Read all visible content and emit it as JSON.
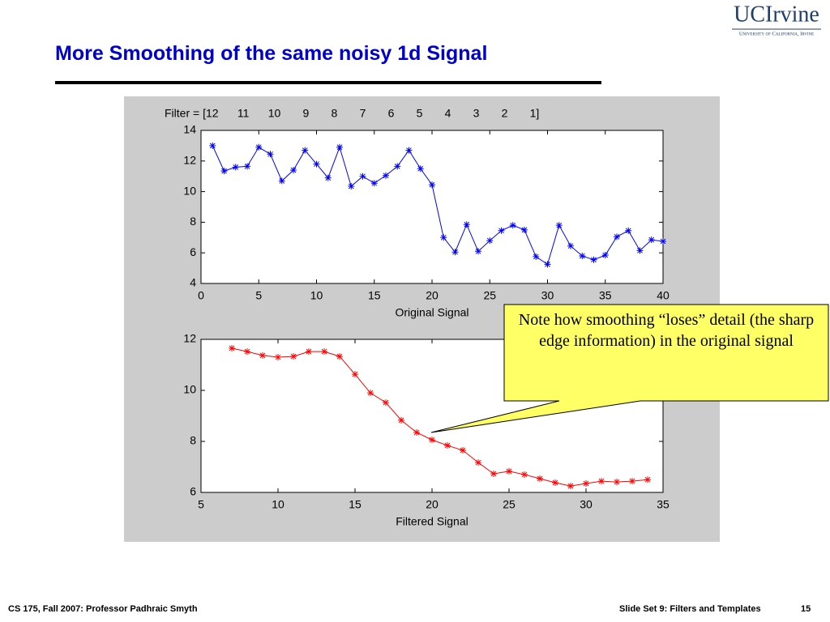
{
  "header": {
    "title": "More Smoothing of the same noisy 1d Signal",
    "logo": "UCIrvine",
    "logo_subtitle": "University of California, Irvine"
  },
  "chart_data": [
    {
      "type": "line",
      "title": "Filter = [12      11      10       9       8       7       6       5       4       3       2       1]",
      "xlabel": "Original Signal",
      "x": [
        1,
        2,
        3,
        4,
        5,
        6,
        7,
        8,
        9,
        10,
        11,
        12,
        13,
        14,
        15,
        16,
        17,
        18,
        19,
        20,
        21,
        22,
        23,
        24,
        25,
        26,
        27,
        28,
        29,
        30,
        31,
        32,
        33,
        34,
        35,
        36,
        37,
        38,
        39,
        40
      ],
      "series": [
        {
          "color": "#0000ff",
          "values": [
            13.0,
            11.35,
            11.6,
            11.65,
            12.9,
            12.45,
            10.7,
            11.4,
            12.7,
            11.8,
            10.9,
            12.9,
            10.35,
            11.0,
            10.55,
            11.05,
            11.65,
            12.7,
            11.5,
            10.45,
            7.0,
            6.05,
            7.85,
            6.1,
            6.8,
            7.45,
            7.8,
            7.5,
            5.75,
            5.25,
            7.8,
            6.45,
            5.8,
            5.55,
            5.85,
            7.05,
            7.45,
            6.15,
            6.85,
            6.75
          ]
        }
      ],
      "xlim": [
        0,
        40
      ],
      "xticks": [
        0,
        5,
        10,
        15,
        20,
        25,
        30,
        35,
        40
      ],
      "ylim": [
        4,
        14
      ],
      "yticks": [
        4,
        6,
        8,
        10,
        12,
        14
      ]
    },
    {
      "type": "line",
      "xlabel": "Filtered Signal",
      "x": [
        7,
        8,
        9,
        10,
        11,
        12,
        13,
        14,
        15,
        16,
        17,
        18,
        19,
        20,
        21,
        22,
        23,
        24,
        25,
        26,
        27,
        28,
        29,
        30,
        31,
        32,
        33,
        34
      ],
      "series": [
        {
          "color": "#ff0000",
          "values": [
            11.65,
            11.52,
            11.37,
            11.3,
            11.33,
            11.52,
            11.52,
            11.33,
            10.63,
            9.9,
            9.52,
            8.83,
            8.35,
            8.06,
            7.84,
            7.65,
            7.17,
            6.73,
            6.83,
            6.7,
            6.54,
            6.38,
            6.25,
            6.35,
            6.44,
            6.41,
            6.44,
            6.5
          ]
        }
      ],
      "xlim": [
        5,
        35
      ],
      "xticks": [
        5,
        10,
        15,
        20,
        25,
        30,
        35
      ],
      "ylim": [
        6,
        12
      ],
      "yticks": [
        6,
        8,
        10,
        12
      ]
    }
  ],
  "callout": {
    "text": "Note how smoothing “loses” detail (the sharp edge information) in the original signal"
  },
  "footer": {
    "left": "CS 175, Fall 2007: Professor Padhraic Smyth",
    "right": "Slide Set 9: Filters and Templates",
    "page": "15"
  }
}
